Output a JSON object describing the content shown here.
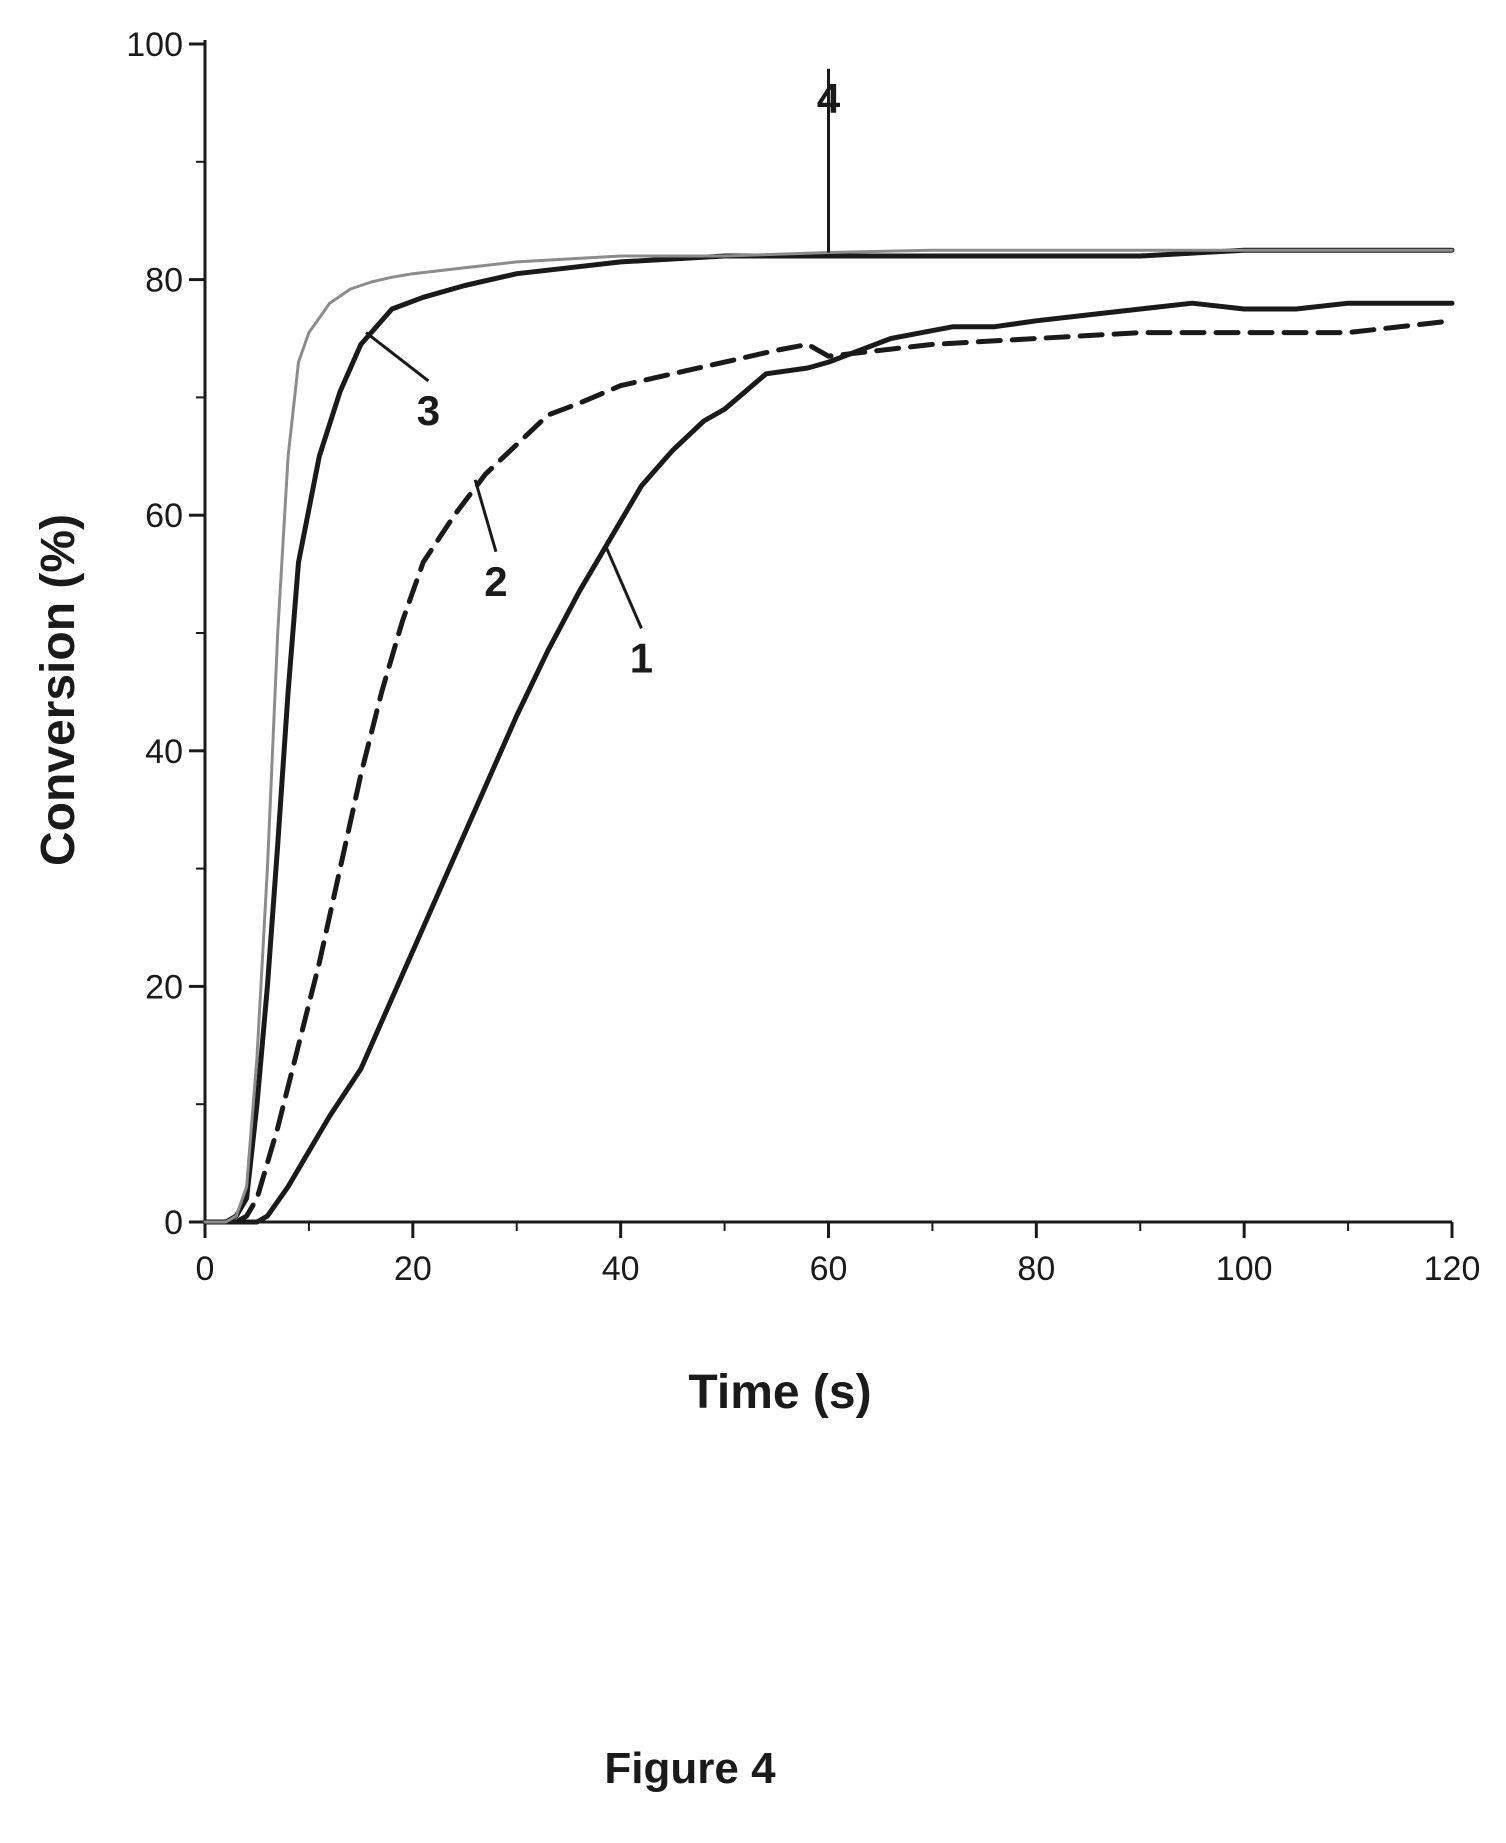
{
  "figure": {
    "caption": "Figure 4"
  },
  "chart_data": {
    "type": "line",
    "title": "",
    "xlabel": "Time (s)",
    "ylabel": "Conversion (%)",
    "xlim": [
      0,
      120
    ],
    "ylim": [
      0,
      100
    ],
    "xticks": [
      0,
      20,
      40,
      60,
      80,
      100,
      120
    ],
    "yticks": [
      0,
      20,
      40,
      60,
      80,
      100
    ],
    "xtick_labels": [
      "0",
      "20",
      "40",
      "60",
      "80",
      "100",
      "120"
    ],
    "ytick_labels": [
      "0",
      "20",
      "40",
      "60",
      "80",
      "100"
    ],
    "grid": false,
    "legend": "none",
    "series": [
      {
        "name": "1",
        "style": "solid",
        "color": "#1a1a1a",
        "x": [
          0,
          3,
          5,
          6,
          8,
          10,
          12,
          15,
          18,
          21,
          24,
          27,
          30,
          33,
          36,
          39,
          42,
          45,
          48,
          50,
          54,
          58,
          60,
          63,
          66,
          69,
          72,
          76,
          80,
          85,
          90,
          95,
          100,
          105,
          110,
          115,
          120
        ],
        "y": [
          0,
          0,
          0,
          0.5,
          3,
          6,
          9,
          13,
          19,
          25,
          31,
          37,
          43,
          48.5,
          53.5,
          58,
          62.5,
          65.5,
          68,
          69,
          72,
          72.5,
          73,
          74,
          75,
          75.5,
          76,
          76,
          76.5,
          77,
          77.5,
          78,
          77.5,
          77.5,
          78,
          78,
          78
        ]
      },
      {
        "name": "2",
        "style": "dashed",
        "color": "#1a1a1a",
        "x": [
          0,
          3,
          4,
          5,
          7,
          9,
          11,
          13,
          15,
          17,
          19,
          21,
          24,
          27,
          30,
          33,
          36,
          40,
          45,
          50,
          55,
          58,
          60,
          65,
          70,
          80,
          90,
          100,
          110,
          120
        ],
        "y": [
          0,
          0,
          0.5,
          2,
          8,
          15,
          22,
          30,
          38,
          45,
          51,
          56,
          60,
          63.5,
          66,
          68.5,
          69.5,
          71,
          72,
          73,
          74,
          74.5,
          73.5,
          74,
          74.5,
          75,
          75.5,
          75.5,
          75.5,
          76.5
        ]
      },
      {
        "name": "3",
        "style": "solid",
        "color": "#1a1a1a",
        "x": [
          0,
          2,
          3,
          4,
          5,
          6,
          7,
          8,
          9,
          11,
          13,
          15,
          18,
          21,
          25,
          30,
          35,
          40,
          50,
          60,
          70,
          80,
          90,
          100,
          110,
          120
        ],
        "y": [
          0,
          0,
          0.5,
          2,
          10,
          20,
          32,
          45,
          56,
          65,
          70.5,
          74.5,
          77.5,
          78.5,
          79.5,
          80.5,
          81,
          81.5,
          82,
          82,
          82,
          82,
          82,
          82.5,
          82.5,
          82.5
        ]
      },
      {
        "name": "4",
        "style": "solid",
        "color": "#8c8c8c",
        "x": [
          0,
          2,
          3,
          4,
          5,
          6,
          7,
          8,
          9,
          10,
          12,
          14,
          16,
          18,
          20,
          25,
          30,
          40,
          50,
          60,
          70,
          80,
          90,
          100,
          110,
          120
        ],
        "y": [
          0,
          0,
          0.5,
          3,
          14,
          30,
          50,
          65,
          73,
          75.5,
          78,
          79.2,
          79.8,
          80.2,
          80.5,
          81,
          81.5,
          82,
          82,
          82.3,
          82.5,
          82.5,
          82.5,
          82.5,
          82.5,
          82.5
        ]
      }
    ],
    "annotations": [
      {
        "text": "1",
        "x": 42,
        "y": 47,
        "leader_to": [
          38.5,
          57.5
        ]
      },
      {
        "text": "2",
        "x": 28,
        "y": 53.5,
        "leader_to": [
          26,
          63
        ]
      },
      {
        "text": "3",
        "x": 21.5,
        "y": 68,
        "leader_to": [
          15.5,
          75.5
        ]
      },
      {
        "text": "4",
        "x": 60,
        "y": 94.5,
        "leader_to": [
          60,
          82.3
        ]
      }
    ]
  }
}
